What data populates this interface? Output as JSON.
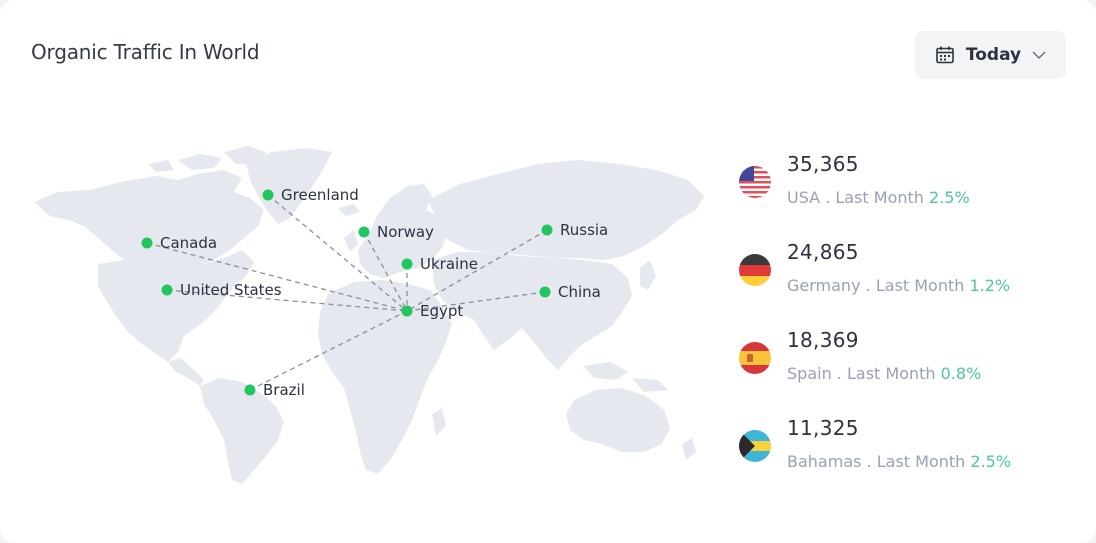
{
  "header": {
    "title": "Organic Traffic In World",
    "period_label": "Today",
    "calendar_icon": "calendar-icon",
    "dropdown_icon": "chevron-down-icon"
  },
  "map": {
    "land_color": "#e5e8ee",
    "pin_color": "#22c55e",
    "line_color": "#8a8f99",
    "hub": "Egypt",
    "locations": [
      {
        "name": "Greenland"
      },
      {
        "name": "Canada"
      },
      {
        "name": "United States"
      },
      {
        "name": "Norway"
      },
      {
        "name": "Ukraine"
      },
      {
        "name": "Russia"
      },
      {
        "name": "China"
      },
      {
        "name": "Egypt"
      },
      {
        "name": "Brazil"
      }
    ]
  },
  "stats": [
    {
      "value": "35,365",
      "country": "USA",
      "period": ". Last Month",
      "change": "2.5%",
      "flag_icon": "usa-flag-icon"
    },
    {
      "value": "24,865",
      "country": "Germany",
      "period": ". Last Month",
      "change": "1.2%",
      "flag_icon": "germany-flag-icon"
    },
    {
      "value": "18,369",
      "country": "Spain",
      "period": ". Last Month",
      "change": "0.8%",
      "flag_icon": "spain-flag-icon"
    },
    {
      "value": "11,325",
      "country": "Bahamas",
      "period": ". Last Month",
      "change": "2.5%",
      "flag_icon": "bahamas-flag-icon"
    }
  ],
  "colors": {
    "accent_positive": "#4cc7a0",
    "muted_text": "#9aa0b6",
    "button_bg": "#f3f4f6"
  }
}
